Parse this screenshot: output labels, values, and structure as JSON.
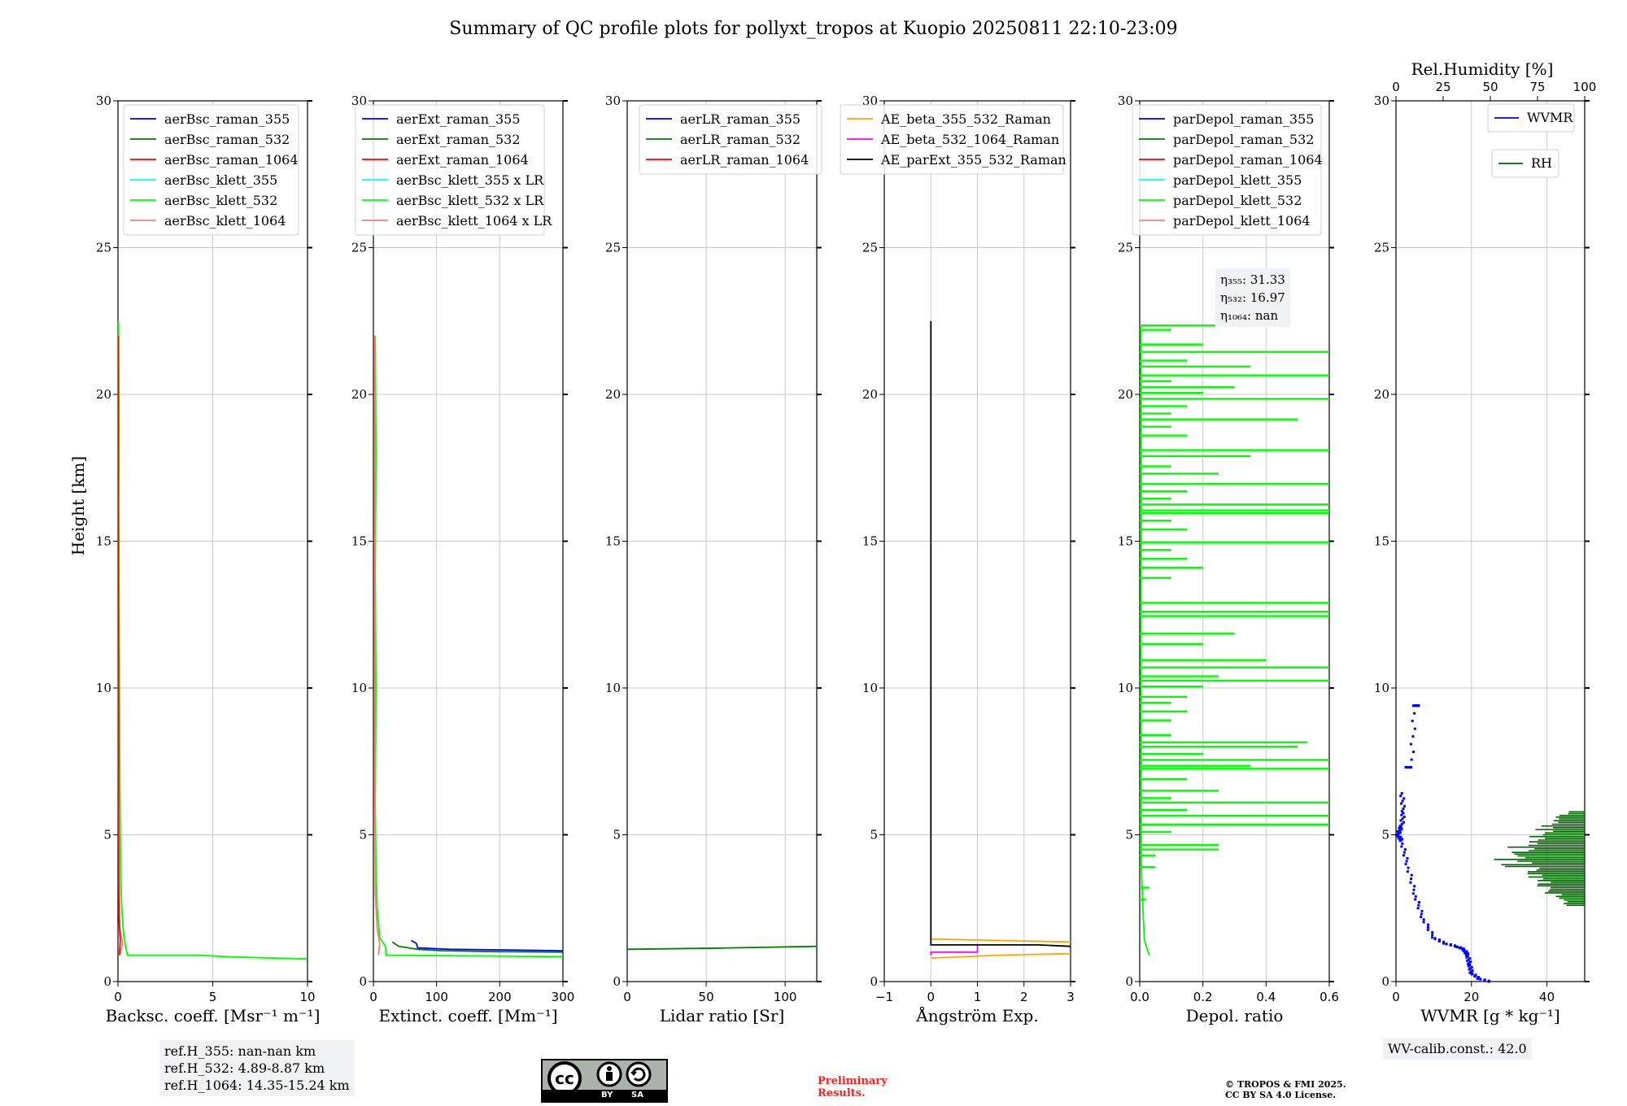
{
  "title": "Summary of QC profile plots for pollyxt_tropos at Kuopio 20250811 22:10-23:09",
  "ylabel": "Height [km]",
  "colors": {
    "blue": "#0000ff",
    "green": "#008000",
    "red": "#ff0000",
    "cyan": "#00ffff",
    "lime": "#00ff00",
    "salmon": "#fa8072",
    "orange": "#ffa500",
    "magenta": "#ff00ff",
    "black": "#000000",
    "darkgreen": "#006400"
  },
  "chart_data": [
    {
      "type": "line",
      "name": "backscatter",
      "xlabel": "Backsc. coeff. [Msr⁻¹ m⁻¹]",
      "xlim": [
        0,
        10
      ],
      "ylim": [
        0,
        30
      ],
      "xticks": [
        "0",
        "5",
        "10"
      ],
      "yticks": [
        "0",
        "5",
        "10",
        "15",
        "20",
        "25",
        "30"
      ],
      "legend": [
        "aerBsc_raman_355",
        "aerBsc_raman_532",
        "aerBsc_raman_1064",
        "aerBsc_klett_355",
        "aerBsc_klett_532",
        "aerBsc_klett_1064"
      ],
      "legend_colors": [
        "blue",
        "green",
        "red",
        "cyan",
        "lime",
        "salmon"
      ],
      "series": [
        {
          "name": "aerBsc_klett_532",
          "color": "lime",
          "points": [
            [
              10.0,
              0.77
            ],
            [
              6.0,
              0.84
            ],
            [
              4.2,
              0.9
            ],
            [
              0.5,
              0.9
            ],
            [
              0.4,
              1.2
            ],
            [
              0.3,
              1.6
            ],
            [
              0.2,
              2.5
            ],
            [
              0.15,
              3.5
            ],
            [
              0.12,
              5.0
            ],
            [
              0.1,
              7.0
            ],
            [
              0.08,
              10.0
            ],
            [
              0.06,
              13.0
            ],
            [
              0.04,
              16.0
            ],
            [
              0.05,
              19.0
            ],
            [
              0.03,
              22.5
            ]
          ]
        },
        {
          "name": "aerBsc_klett_1064",
          "color": "salmon",
          "points": [
            [
              0.1,
              0.9
            ],
            [
              0.25,
              1.3
            ],
            [
              0.1,
              1.8
            ],
            [
              0.05,
              3.0
            ],
            [
              0.03,
              6.0
            ],
            [
              0.02,
              10.0
            ],
            [
              0.02,
              22.0
            ]
          ]
        },
        {
          "name": "aerBsc_raman_1064",
          "color": "red",
          "points": [
            [
              0.08,
              0.9
            ],
            [
              0.12,
              1.4
            ],
            [
              0.05,
              2.2
            ],
            [
              0.03,
              5.0
            ],
            [
              0.02,
              12.0
            ],
            [
              0.02,
              22.0
            ]
          ]
        }
      ]
    },
    {
      "type": "line",
      "name": "extinction",
      "xlabel": "Extinct. coeff. [Mm⁻¹]",
      "xlim": [
        0,
        300
      ],
      "ylim": [
        0,
        30
      ],
      "xticks": [
        "0",
        "100",
        "200",
        "300"
      ],
      "yticks": [
        "0",
        "5",
        "10",
        "15",
        "20",
        "25",
        "30"
      ],
      "legend": [
        "aerExt_raman_355",
        "aerExt_raman_532",
        "aerExt_raman_1064",
        "aerBsc_klett_355 x LR",
        "aerBsc_klett_532 x LR",
        "aerBsc_klett_1064 x LR"
      ],
      "legend_colors": [
        "blue",
        "green",
        "red",
        "cyan",
        "lime",
        "salmon"
      ],
      "series": [
        {
          "name": "aerExt_raman_355",
          "color": "blue",
          "points": [
            [
              300,
              1.05
            ],
            [
              200,
              1.08
            ],
            [
              120,
              1.1
            ],
            [
              70,
              1.15
            ],
            [
              68,
              1.3
            ],
            [
              60,
              1.4
            ]
          ]
        },
        {
          "name": "aerExt_raman_532",
          "color": "green",
          "points": [
            [
              300,
              1.0
            ],
            [
              200,
              1.02
            ],
            [
              110,
              1.05
            ],
            [
              70,
              1.1
            ],
            [
              40,
              1.2
            ],
            [
              30,
              1.35
            ]
          ]
        },
        {
          "name": "aerBsc_klett_532 x LR",
          "color": "lime",
          "points": [
            [
              300,
              0.85
            ],
            [
              120,
              0.88
            ],
            [
              20,
              0.9
            ],
            [
              19,
              1.2
            ],
            [
              10,
              1.5
            ],
            [
              6,
              2.5
            ],
            [
              4,
              4.0
            ],
            [
              3,
              6.0
            ],
            [
              4,
              10.0
            ],
            [
              3,
              14.0
            ],
            [
              4,
              18.0
            ],
            [
              3,
              22.0
            ]
          ]
        },
        {
          "name": "aerBsc_klett_1064 x LR",
          "color": "salmon",
          "points": [
            [
              8,
              0.9
            ],
            [
              10,
              1.3
            ],
            [
              6,
              1.8
            ],
            [
              3,
              3.0
            ],
            [
              2,
              8.0
            ],
            [
              2,
              22.0
            ]
          ]
        }
      ]
    },
    {
      "type": "line",
      "name": "lidar_ratio",
      "xlabel": "Lidar ratio [Sr]",
      "xlim": [
        0,
        120
      ],
      "ylim": [
        0,
        30
      ],
      "xticks": [
        "0",
        "50",
        "100"
      ],
      "yticks": [
        "0",
        "5",
        "10",
        "15",
        "20",
        "25",
        "30"
      ],
      "legend": [
        "aerLR_raman_355",
        "aerLR_raman_532",
        "aerLR_raman_1064"
      ],
      "legend_colors": [
        "blue",
        "green",
        "red"
      ],
      "series": [
        {
          "name": "aerLR_raman_532",
          "color": "green",
          "points": [
            [
              0,
              1.1
            ],
            [
              60,
              1.14
            ],
            [
              120,
              1.2
            ]
          ]
        }
      ]
    },
    {
      "type": "line",
      "name": "angstrom",
      "xlabel": "Ångström Exp.",
      "xlim": [
        -1,
        3
      ],
      "ylim": [
        0,
        30
      ],
      "xticks": [
        "−1",
        "0",
        "1",
        "2",
        "3"
      ],
      "yticks": [
        "0",
        "5",
        "10",
        "15",
        "20",
        "25",
        "30"
      ],
      "legend": [
        "AE_beta_355_532_Raman",
        "AE_beta_532_1064_Raman",
        "AE_parExt_355_532_Raman"
      ],
      "legend_colors": [
        "orange",
        "magenta",
        "black"
      ],
      "series": [
        {
          "name": "AE_beta_355_532_Raman",
          "color": "orange",
          "points": [
            [
              0,
              0.8
            ],
            [
              1.5,
              0.9
            ],
            [
              3,
              0.95
            ]
          ]
        },
        {
          "name": "AE_beta_355_532_Raman_upper",
          "color": "orange",
          "points": [
            [
              0,
              1.45
            ],
            [
              1.5,
              1.4
            ],
            [
              3,
              1.35
            ]
          ]
        },
        {
          "name": "AE_beta_532_1064_Raman",
          "color": "magenta",
          "points": [
            [
              0,
              0.9
            ],
            [
              0,
              1.0
            ],
            [
              1,
              1.0
            ],
            [
              1,
              1.25
            ]
          ]
        },
        {
          "name": "AE_parExt_355_532_Raman",
          "color": "black",
          "points": [
            [
              0,
              22.5
            ],
            [
              0,
              1.25
            ],
            [
              2.3,
              1.25
            ],
            [
              3,
              1.2
            ]
          ]
        }
      ]
    },
    {
      "type": "line",
      "name": "depolarization",
      "xlabel": "Depol. ratio",
      "xlim": [
        0,
        0.6
      ],
      "ylim": [
        0,
        30
      ],
      "xticks": [
        "0.0",
        "0.2",
        "0.4",
        "0.6"
      ],
      "yticks": [
        "0",
        "5",
        "10",
        "15",
        "20",
        "25",
        "30"
      ],
      "legend": [
        "parDepol_raman_355",
        "parDepol_raman_532",
        "parDepol_raman_1064",
        "parDepol_klett_355",
        "parDepol_klett_532",
        "parDepol_klett_1064"
      ],
      "legend_colors": [
        "blue",
        "green",
        "red",
        "cyan",
        "lime",
        "salmon"
      ],
      "spikes": {
        "color": "lime",
        "points": [
          [
            22.35,
            0.25
          ],
          [
            22.2,
            0.1
          ],
          [
            21.7,
            0.2
          ],
          [
            21.45,
            0.6
          ],
          [
            21.15,
            0.15
          ],
          [
            20.95,
            0.35
          ],
          [
            20.65,
            0.6
          ],
          [
            20.45,
            0.1
          ],
          [
            20.25,
            0.3
          ],
          [
            20.05,
            0.2
          ],
          [
            19.85,
            0.6
          ],
          [
            19.6,
            0.15
          ],
          [
            19.35,
            0.1
          ],
          [
            19.15,
            0.5
          ],
          [
            18.9,
            0.1
          ],
          [
            18.6,
            0.15
          ],
          [
            18.1,
            0.6
          ],
          [
            17.9,
            0.35
          ],
          [
            17.55,
            0.1
          ],
          [
            17.3,
            0.25
          ],
          [
            16.95,
            0.6
          ],
          [
            16.7,
            0.15
          ],
          [
            16.45,
            0.1
          ],
          [
            16.25,
            0.6
          ],
          [
            16.05,
            0.6
          ],
          [
            15.95,
            0.6
          ],
          [
            15.7,
            0.1
          ],
          [
            15.4,
            0.15
          ],
          [
            14.95,
            0.6
          ],
          [
            14.7,
            0.1
          ],
          [
            14.4,
            0.15
          ],
          [
            14.1,
            0.2
          ],
          [
            13.75,
            0.1
          ],
          [
            12.9,
            0.6
          ],
          [
            12.6,
            0.6
          ],
          [
            12.45,
            0.6
          ],
          [
            11.85,
            0.3
          ],
          [
            11.5,
            0.2
          ],
          [
            10.95,
            0.4
          ],
          [
            10.7,
            0.6
          ],
          [
            10.4,
            0.25
          ],
          [
            10.25,
            0.6
          ],
          [
            10.05,
            0.2
          ],
          [
            9.7,
            0.15
          ],
          [
            9.5,
            0.1
          ],
          [
            9.2,
            0.15
          ],
          [
            8.9,
            0.1
          ],
          [
            8.4,
            0.1
          ],
          [
            8.15,
            0.53
          ],
          [
            8.0,
            0.5
          ],
          [
            7.75,
            0.2
          ],
          [
            7.55,
            0.6
          ],
          [
            7.35,
            0.35
          ],
          [
            7.25,
            0.6
          ],
          [
            6.9,
            0.15
          ],
          [
            6.5,
            0.25
          ],
          [
            6.25,
            0.1
          ],
          [
            6.1,
            0.6
          ],
          [
            5.85,
            0.15
          ],
          [
            5.65,
            0.6
          ],
          [
            5.35,
            0.6
          ],
          [
            5.1,
            0.1
          ],
          [
            4.65,
            0.25
          ],
          [
            4.5,
            0.25
          ],
          [
            4.3,
            0.05
          ],
          [
            3.9,
            0.05
          ],
          [
            3.2,
            0.03
          ],
          [
            2.8,
            0.02
          ]
        ]
      },
      "series": [
        {
          "name": "parDepol_klett_532_base",
          "color": "lime",
          "points": [
            [
              0.03,
              0.9
            ],
            [
              0.015,
              1.4
            ],
            [
              0.01,
              2.5
            ],
            [
              0.005,
              4.0
            ],
            [
              0.004,
              8.0
            ],
            [
              0.003,
              12.0
            ],
            [
              0.005,
              16.0
            ],
            [
              0.004,
              20.0
            ],
            [
              0.003,
              22.3
            ]
          ]
        }
      ],
      "annotation": {
        "eta_355_label": "η₃₅₅: 31.33",
        "eta_532_label": "η₅₃₂: 16.97",
        "eta_1064_label": "η₁₀₆₄: nan"
      }
    },
    {
      "type": "scatter",
      "name": "water_vapor",
      "xlabel": "WVMR [g * kg⁻¹]",
      "xlim": [
        0,
        50
      ],
      "ylim": [
        0,
        30
      ],
      "xticks": [
        "0",
        "20",
        "40"
      ],
      "yticks": [
        "0",
        "5",
        "10",
        "15",
        "20",
        "25",
        "30"
      ],
      "top_axis": {
        "label": "Rel.Humidity [%]",
        "xlim": [
          0,
          100
        ],
        "ticks": [
          "0",
          "25",
          "50",
          "75",
          "100"
        ]
      },
      "legend": [
        "WVMR",
        "RH"
      ],
      "legend_colors": [
        "blue",
        "darkgreen"
      ],
      "series": [
        {
          "name": "WVMR",
          "color": "blue",
          "points": [
            [
              25,
              0.0
            ],
            [
              22,
              0.1
            ],
            [
              20,
              0.3
            ],
            [
              19.5,
              0.6
            ],
            [
              19,
              0.9
            ],
            [
              18,
              1.1
            ],
            [
              16,
              1.2
            ],
            [
              13,
              1.3
            ],
            [
              10,
              1.5
            ],
            [
              7,
              2.2
            ],
            [
              5,
              3.0
            ],
            [
              3,
              4.0
            ],
            [
              1.5,
              4.8
            ],
            [
              0.5,
              5.0
            ],
            [
              1.5,
              5.3
            ],
            [
              2,
              5.8
            ],
            [
              1.5,
              6.5
            ]
          ]
        },
        {
          "name": "WVMR_upper",
          "color": "blue",
          "points": [
            [
              3,
              7.3
            ],
            [
              4,
              7.3
            ],
            [
              5,
              9.4
            ],
            [
              6,
              9.4
            ]
          ]
        }
      ],
      "rh": {
        "name": "RH",
        "color": "darkgreen",
        "ymin": 2.6,
        "ymax": 5.8,
        "xmin_pct": 50,
        "xmax_pct": 100
      }
    }
  ],
  "info_refH": {
    "line1": "ref.H_355: nan-nan km",
    "line2": "ref.H_532: 4.89-8.87 km",
    "line3": "ref.H_1064: 14.35-15.24 km"
  },
  "info_wv": "WV-calib.const.: 42.0",
  "footer": {
    "preliminary_line1": "Preliminary",
    "preliminary_line2": "Results.",
    "copyright_line1": "© TROPOS & FMI 2025.",
    "copyright_line2": "CC BY SA 4.0 License.",
    "cc_badge_logo_text": "cc",
    "cc_badge_by": "BY",
    "cc_badge_sa": "SA"
  }
}
